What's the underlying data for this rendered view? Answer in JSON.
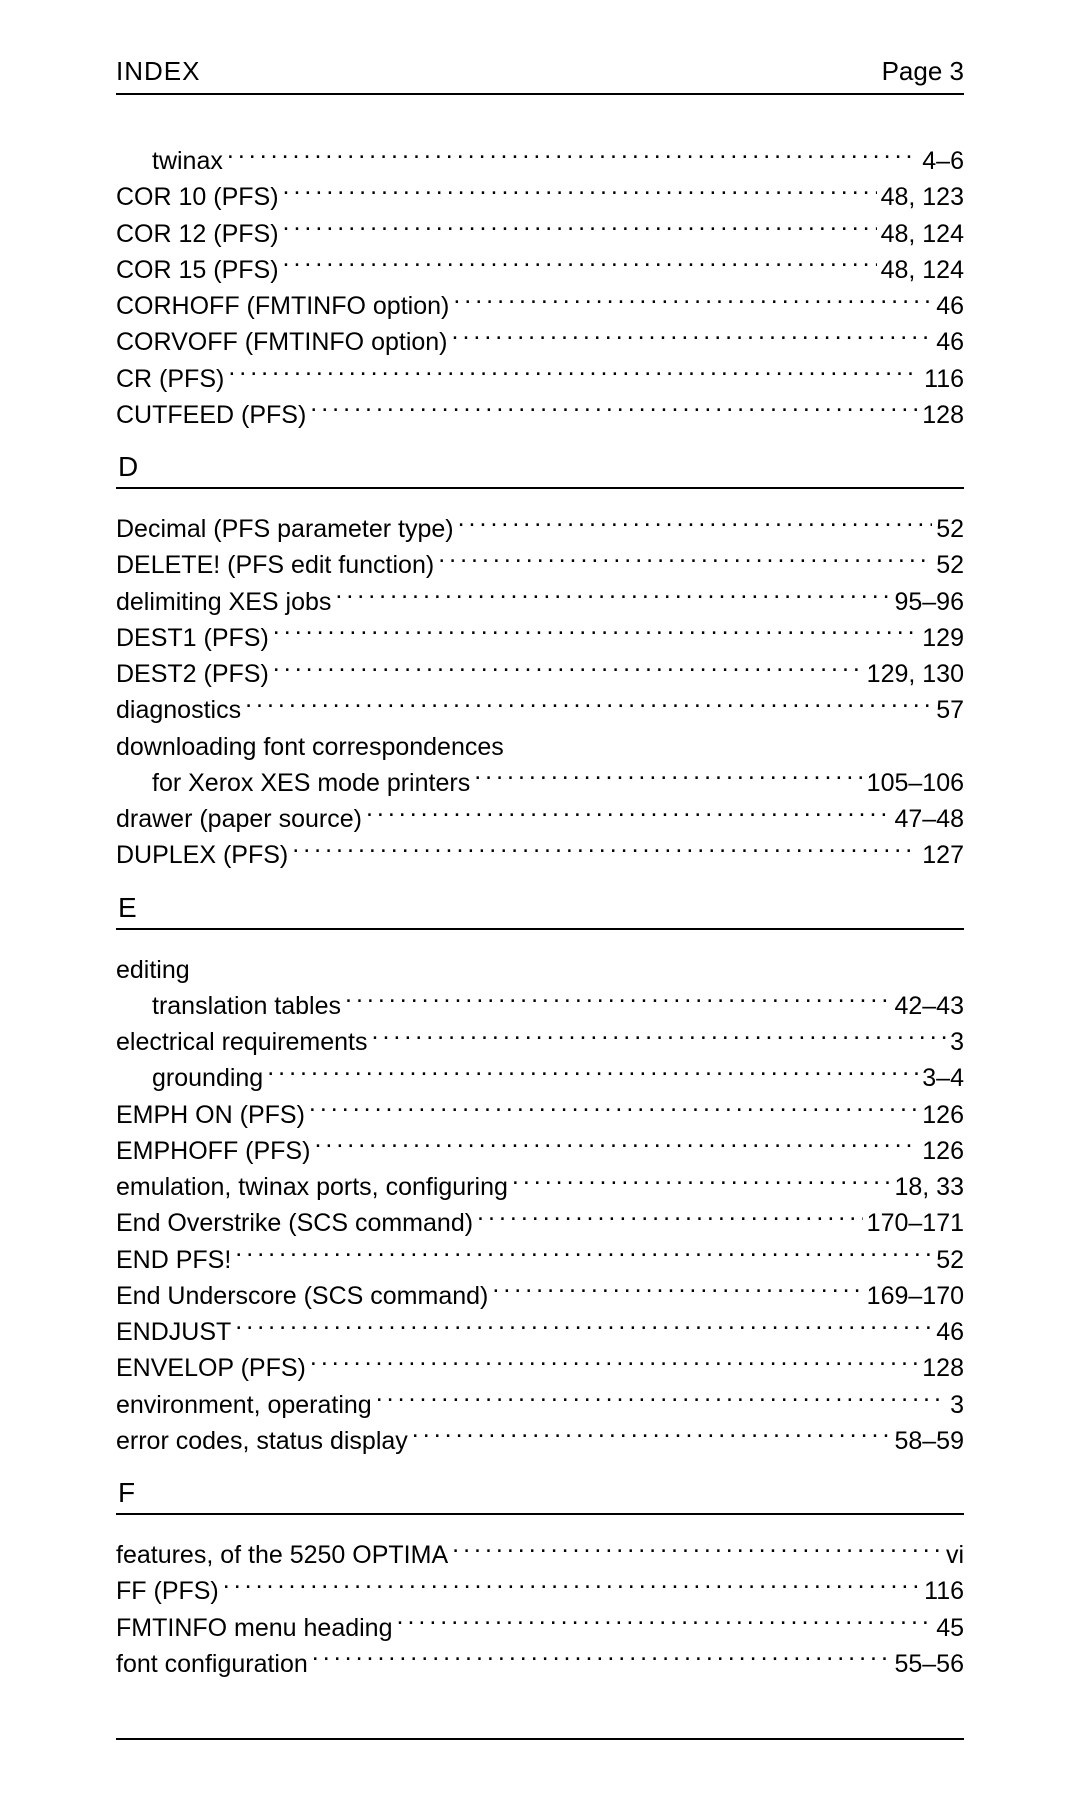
{
  "header": {
    "title": "INDEX",
    "page_label": "Page 3"
  },
  "pre_entries": [
    {
      "term": "twinax",
      "pages": "4–6",
      "indent": 1
    },
    {
      "term": "COR 10 (PFS)",
      "pages": "48, 123",
      "indent": 0
    },
    {
      "term": "COR 12 (PFS)",
      "pages": "48, 124",
      "indent": 0
    },
    {
      "term": "COR 15 (PFS)",
      "pages": "48, 124",
      "indent": 0
    },
    {
      "term": "CORHOFF (FMTINFO option)",
      "pages": "46",
      "indent": 0
    },
    {
      "term": "CORVOFF (FMTINFO option)",
      "pages": "46",
      "indent": 0
    },
    {
      "term": "CR (PFS)",
      "pages": "116",
      "indent": 0
    },
    {
      "term": "CUTFEED (PFS)",
      "pages": "128",
      "indent": 0
    }
  ],
  "sections": [
    {
      "letter": "D",
      "entries": [
        {
          "term": "Decimal (PFS parameter type)",
          "pages": "52",
          "indent": 0
        },
        {
          "term": "DELETE! (PFS edit function)",
          "pages": "52",
          "indent": 0
        },
        {
          "term": "delimiting XES jobs",
          "pages": "95–96",
          "indent": 0
        },
        {
          "term": "DEST1 (PFS)",
          "pages": "129",
          "indent": 0
        },
        {
          "term": "DEST2 (PFS)",
          "pages": "129, 130",
          "indent": 0
        },
        {
          "term": "diagnostics",
          "pages": "57",
          "indent": 0
        },
        {
          "term": "downloading font correspondences",
          "pages": "",
          "indent": 0,
          "noleader": true
        },
        {
          "term": "for Xerox XES mode printers",
          "pages": "105–106",
          "indent": 1
        },
        {
          "term": "drawer (paper source)",
          "pages": "47–48",
          "indent": 0
        },
        {
          "term": "DUPLEX (PFS)",
          "pages": "127",
          "indent": 0
        }
      ]
    },
    {
      "letter": "E",
      "entries": [
        {
          "term": "editing",
          "pages": "",
          "indent": 0,
          "noleader": true
        },
        {
          "term": "translation tables",
          "pages": "42–43",
          "indent": 1
        },
        {
          "term": "electrical requirements",
          "pages": "3",
          "indent": 0
        },
        {
          "term": "grounding",
          "pages": "3–4",
          "indent": 1
        },
        {
          "term": "EMPH ON (PFS)",
          "pages": "126",
          "indent": 0
        },
        {
          "term": "EMPHOFF (PFS)",
          "pages": "126",
          "indent": 0
        },
        {
          "term": "emulation, twinax ports, configuring",
          "pages": "18, 33",
          "indent": 0
        },
        {
          "term": "End Overstrike (SCS command)",
          "pages": "170–171",
          "indent": 0
        },
        {
          "term": "END PFS!",
          "pages": "52",
          "indent": 0
        },
        {
          "term": "End Underscore (SCS command)",
          "pages": "169–170",
          "indent": 0
        },
        {
          "term": "ENDJUST",
          "pages": "46",
          "indent": 0
        },
        {
          "term": "ENVELOP (PFS)",
          "pages": "128",
          "indent": 0
        },
        {
          "term": "environment, operating",
          "pages": "3",
          "indent": 0
        },
        {
          "term": "error codes, status display",
          "pages": "58–59",
          "indent": 0
        }
      ]
    },
    {
      "letter": "F",
      "entries": [
        {
          "term": "features, of the 5250 OPTIMA",
          "pages": "vi",
          "indent": 0
        },
        {
          "term": "FF (PFS)",
          "pages": "116",
          "indent": 0
        },
        {
          "term": "FMTINFO menu heading",
          "pages": "45",
          "indent": 0
        },
        {
          "term": "font configuration",
          "pages": "55–56",
          "indent": 0
        }
      ]
    }
  ]
}
